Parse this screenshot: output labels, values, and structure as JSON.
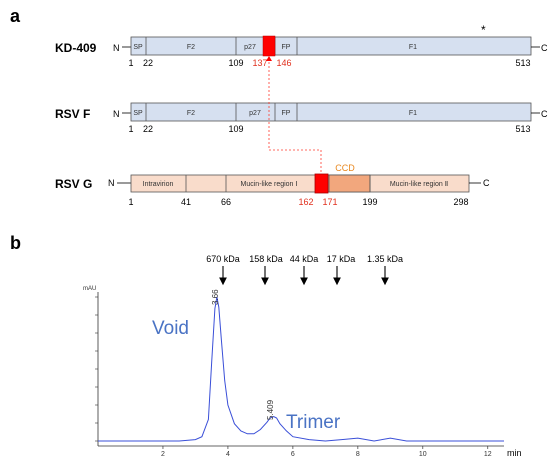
{
  "panel_a": {
    "letter": "a",
    "n_term": "N",
    "c_term": "C",
    "rows": [
      {
        "label": "KD-409",
        "domains": [
          "SP",
          "F2",
          "p27",
          "FP",
          "F1"
        ],
        "positions": [
          "1",
          "22",
          "109",
          "137",
          "146",
          "513"
        ],
        "asterisk": "*"
      },
      {
        "label": "RSV F",
        "domains": [
          "SP",
          "F2",
          "p27",
          "FP",
          "F1"
        ],
        "positions": [
          "1",
          "22",
          "109",
          "513"
        ]
      },
      {
        "label": "RSV G",
        "domains": [
          "Intravirion",
          "Mucin-like region Ⅰ",
          "Mucin-like region Ⅱ"
        ],
        "ccd": "CCD",
        "positions": [
          "1",
          "41",
          "66",
          "162",
          "171",
          "199",
          "298"
        ]
      }
    ]
  },
  "panel_b": {
    "letter": "b",
    "y_unit": "mAU",
    "x_unit": "min",
    "markers": [
      "670 kDa",
      "158 kDa",
      "44 kDa",
      "17 kDa",
      "1.35 kDa"
    ],
    "peak1_value": "3.66",
    "peak2_value": "5.409",
    "void_label": "Void",
    "trimer_label": "Trimer",
    "x_ticks": [
      "2",
      "4",
      "6",
      "8",
      "10",
      "12"
    ],
    "colors": {
      "trace": "#3a4fd8",
      "annotation": "#4a73c4",
      "accent": "#ff0000",
      "domain_f": "#d6e0f0",
      "domain_g": "#f9dccb",
      "ccd_box": "#f2a77d"
    }
  },
  "chart_data": {
    "type": "line",
    "xlabel": "min",
    "ylabel": "mAU",
    "xlim": [
      0,
      12.5
    ],
    "x_ticks": [
      2,
      4,
      6,
      8,
      10,
      12
    ],
    "peaks": [
      {
        "x": 3.66,
        "label": "Void"
      },
      {
        "x": 5.409,
        "label": "Trimer"
      }
    ],
    "series": [
      {
        "x": [
          0.0,
          0.5,
          1.0,
          1.5,
          2.0,
          2.5,
          3.0,
          3.2,
          3.4,
          3.5,
          3.6,
          3.66,
          3.72,
          3.8,
          3.9,
          4.0,
          4.2,
          4.4,
          4.6,
          4.8,
          5.0,
          5.2,
          5.3,
          5.409,
          5.5,
          5.6,
          5.8,
          6.0,
          6.5,
          7.0,
          7.5,
          8.0,
          8.5,
          9.0,
          9.5,
          10.0,
          10.5,
          11.0,
          11.5,
          12.0,
          12.5
        ],
        "values": [
          0.0,
          0.0,
          0.0,
          0.0,
          0.0,
          0.0,
          0.01,
          0.03,
          0.15,
          0.55,
          0.92,
          1.0,
          0.93,
          0.7,
          0.42,
          0.25,
          0.12,
          0.07,
          0.05,
          0.05,
          0.08,
          0.13,
          0.16,
          0.17,
          0.16,
          0.12,
          0.07,
          0.03,
          0.01,
          0.0,
          0.01,
          0.02,
          0.0,
          0.02,
          0.0,
          0.0,
          0.0,
          0.0,
          0.0,
          0.0,
          0.0
        ]
      }
    ]
  }
}
